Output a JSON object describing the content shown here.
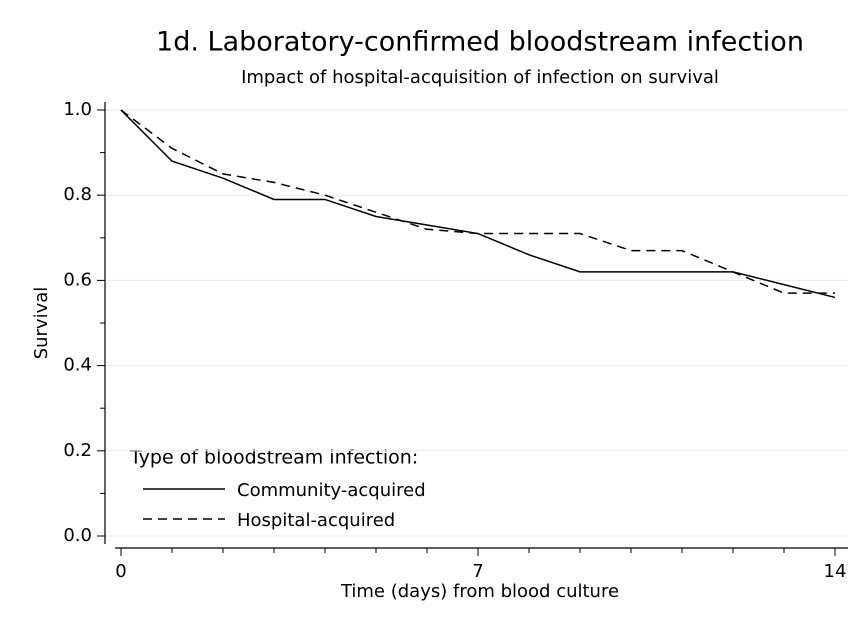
{
  "chart_data": {
    "type": "line",
    "title": "1d.  Laboratory-confirmed bloodstream infection",
    "subtitle": "Impact of hospital-acquisition of infection on survival",
    "x_label": "Time (days) from blood culture",
    "y_label": "Survival",
    "x": [
      0,
      1,
      2,
      3,
      4,
      5,
      6,
      7,
      8,
      9,
      10,
      11,
      12,
      13,
      14
    ],
    "series": [
      {
        "name": "Community-acquired",
        "color": "#000000",
        "dash": "solid",
        "values": [
          1.0,
          0.88,
          0.84,
          0.79,
          0.79,
          0.75,
          0.73,
          0.71,
          0.66,
          0.62,
          0.62,
          0.62,
          0.62,
          0.59,
          0.56
        ]
      },
      {
        "name": "Hospital-acquired",
        "color": "#000000",
        "dash": "dashed",
        "values": [
          1.0,
          0.91,
          0.85,
          0.83,
          0.8,
          0.76,
          0.72,
          0.71,
          0.71,
          0.71,
          0.67,
          0.67,
          0.62,
          0.57,
          0.57
        ]
      }
    ],
    "legend_title": "Type of bloodstream infection:",
    "legend_position": "lower-left",
    "xlim": [
      0,
      14
    ],
    "xticks": [
      0,
      7,
      14
    ],
    "xminor_ticks": [
      1,
      2,
      3,
      4,
      5,
      6,
      8,
      9,
      10,
      11,
      12,
      13
    ],
    "ylim": [
      0,
      1
    ],
    "yticks": [
      {
        "value": 0,
        "label": "0.0"
      },
      0.2,
      0.4,
      0.6,
      0.8,
      {
        "value": 1,
        "label": "1.0"
      }
    ],
    "yminor_ticks": [
      0.1,
      0.3,
      0.5,
      0.7,
      0.9
    ],
    "grid": true
  }
}
